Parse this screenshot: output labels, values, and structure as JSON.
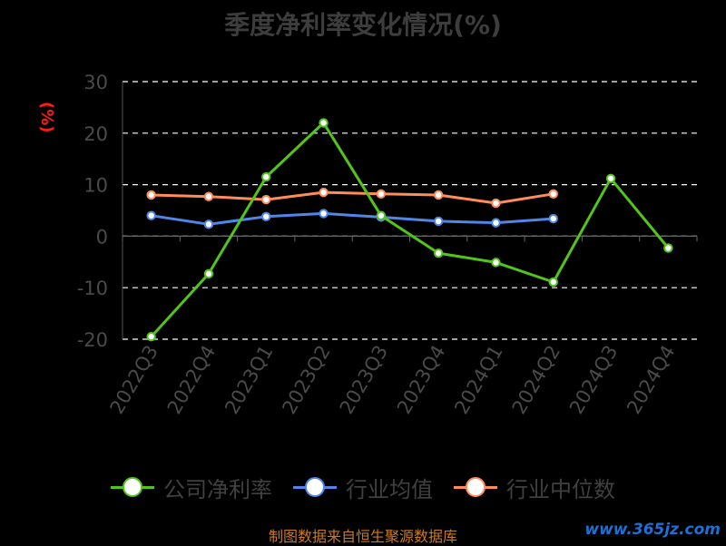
{
  "chart_data": {
    "type": "line",
    "title": "季度净利率变化情况(%)",
    "ylabel": "(%)",
    "ylim": [
      -20,
      30
    ],
    "yticks": [
      "30",
      "20",
      "10",
      "0",
      "-10",
      "-20"
    ],
    "categories": [
      "2022Q3",
      "2022Q4",
      "2023Q1",
      "2023Q2",
      "2023Q3",
      "2023Q4",
      "2024Q1",
      "2024Q2",
      "2024Q3",
      "2024Q4"
    ],
    "grid": true,
    "legend_position": "bottom",
    "series": [
      {
        "name": "公司净利率",
        "color": "#52c41a",
        "values": [
          -19.5,
          -7.3,
          11.5,
          22.0,
          4.0,
          -3.3,
          -5.1,
          -8.9,
          11.2,
          -2.3
        ]
      },
      {
        "name": "行业均值",
        "color": "#4f86e8",
        "values": [
          4.0,
          2.3,
          3.8,
          4.4,
          3.7,
          2.9,
          2.6,
          3.4,
          null,
          null
        ]
      },
      {
        "name": "行业中位数",
        "color": "#ff8c5a",
        "values": [
          8.0,
          7.7,
          7.1,
          8.5,
          8.2,
          8.0,
          6.4,
          8.2,
          null,
          null
        ]
      }
    ]
  },
  "source_text": "制图数据来自恒生聚源数据库",
  "watermark_text": "www.365jz.com"
}
